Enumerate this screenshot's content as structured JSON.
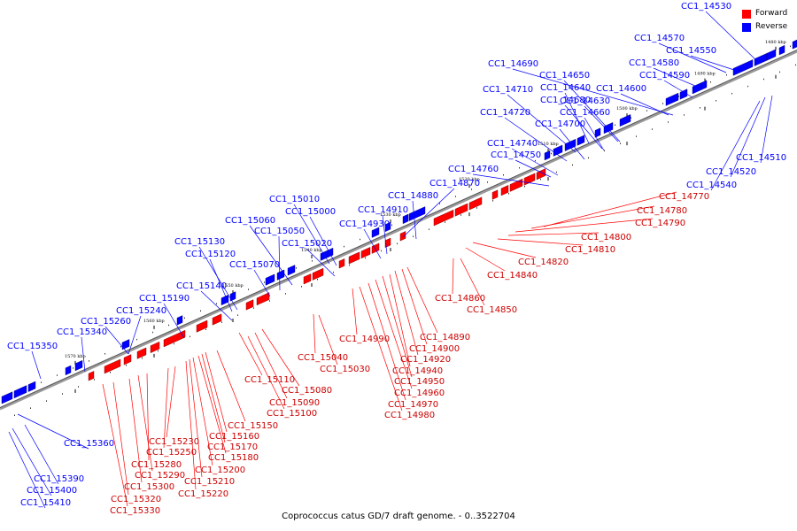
{
  "caption": "Coprococcus catus GD/7 draft genome. - 0..3522704",
  "legend": {
    "forward_label": "Forward",
    "reverse_label": "Reverse",
    "forward_color": "#ff0000",
    "reverse_color": "#0000ff"
  },
  "colors": {
    "forward": "#ff0000",
    "reverse": "#0000ff",
    "axis": "#888888"
  },
  "kbp_markers": [
    "1480 kbp",
    "1490 kbp",
    "1500 kbp",
    "1510 kbp",
    "1520 kbp",
    "1530 kbp",
    "1540 kbp",
    "1550 kbp",
    "1560 kbp",
    "1570 kbp"
  ],
  "reverse_genes": [
    "CC1_14530",
    "CC1_14570",
    "CC1_14550",
    "CC1_14690",
    "CC1_14650",
    "CC1_14580",
    "CC1_14590",
    "CC1_14640",
    "CC1_14600",
    "CC1_14710",
    "CC1_14680",
    "CC1_14630",
    "CC1_14720",
    "CC1_14660",
    "CC1_14700",
    "CC1_14740",
    "CC1_14750",
    "CC1_14760",
    "CC1_14870",
    "CC1_14880",
    "CC1_15010",
    "CC1_15000",
    "CC1_14910",
    "CC1_14930",
    "CC1_15060",
    "CC1_15050",
    "CC1_15020",
    "CC1_15130",
    "CC1_15120",
    "CC1_15070",
    "CC1_15140",
    "CC1_15190",
    "CC1_15240",
    "CC1_15260",
    "CC1_15340",
    "CC1_15350",
    "CC1_15360",
    "CC1_15390",
    "CC1_15400",
    "CC1_15410",
    "CC1_14510",
    "CC1_14520",
    "CC1_14540"
  ],
  "forward_genes": [
    "CC1_14770",
    "CC1_14780",
    "CC1_14790",
    "CC1_14800",
    "CC1_14810",
    "CC1_14820",
    "CC1_14840",
    "CC1_14860",
    "CC1_14850",
    "CC1_14890",
    "CC1_14900",
    "CC1_14920",
    "CC1_14940",
    "CC1_14950",
    "CC1_14960",
    "CC1_14970",
    "CC1_14980",
    "CC1_14990",
    "CC1_15040",
    "CC1_15030",
    "CC1_15080",
    "CC1_15090",
    "CC1_15100",
    "CC1_15110",
    "CC1_15150",
    "CC1_15160",
    "CC1_15170",
    "CC1_15180",
    "CC1_15200",
    "CC1_15210",
    "CC1_15220",
    "CC1_15230",
    "CC1_15250",
    "CC1_15280",
    "CC1_15290",
    "CC1_15300",
    "CC1_15320",
    "CC1_15330"
  ]
}
